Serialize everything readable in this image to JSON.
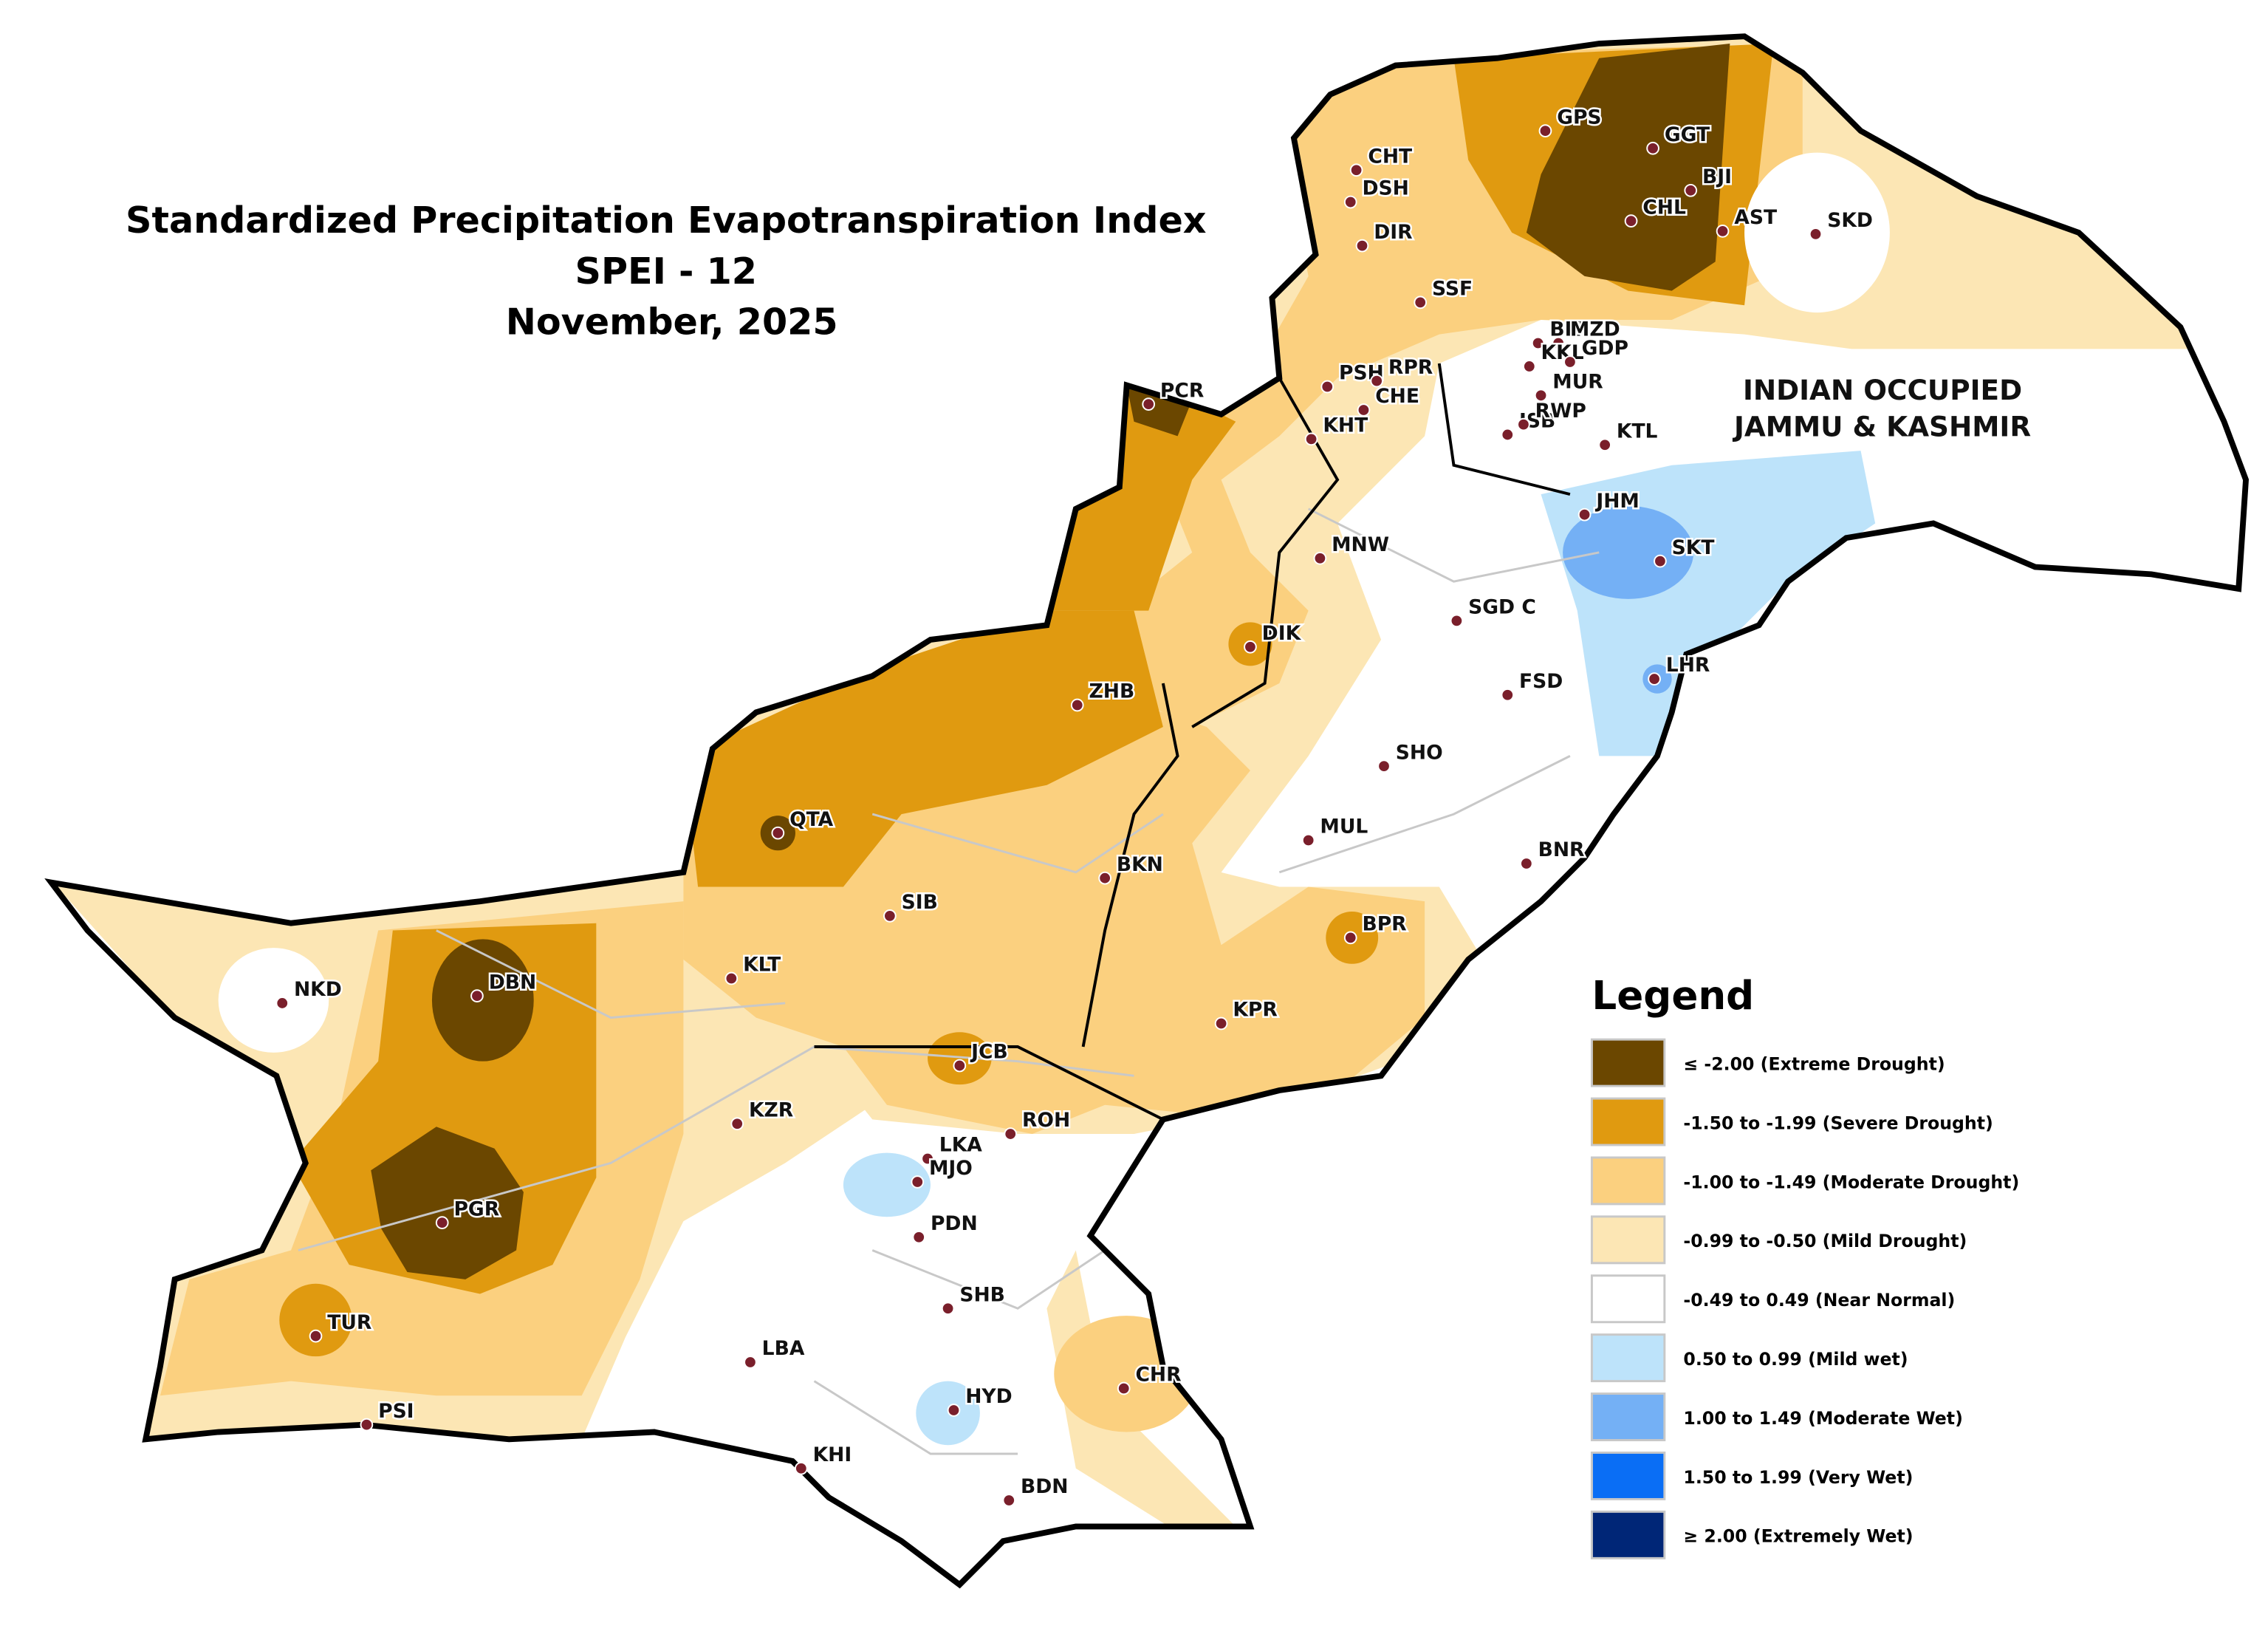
{
  "title": [
    "Standardized Precipitation Evapotranspiration Index",
    "SPEI - 12",
    "November, 2025"
  ],
  "region_label": [
    "INDIAN OCCUPIED",
    "JAMMU & KASHMIR"
  ],
  "stations": [
    "GPS",
    "GGT",
    "BJI",
    "CHT",
    "DSH",
    "CHL",
    "AST",
    "SKD",
    "DIR",
    "SSF",
    "BKT",
    "MZD",
    "KKL",
    "GDP",
    "PSH",
    "RPR",
    "MUR",
    "CHE",
    "PCR",
    "ISB",
    "RWP",
    "KHT",
    "KTL",
    "JHM",
    "SKT",
    "MNW",
    "SGD C",
    "DIK",
    "LHR",
    "FSD",
    "ZHB",
    "SHO",
    "QTA",
    "MUL",
    "BNR",
    "BKN",
    "SIB",
    "BPR",
    "KLT",
    "NKD",
    "DBN",
    "KPR",
    "JCB",
    "KZR",
    "ROH",
    "LKA",
    "MJO",
    "PDN",
    "PGR",
    "SHB",
    "TUR",
    "LBA",
    "CHR",
    "HYD",
    "PSI",
    "KHI",
    "BDN"
  ],
  "legend": {
    "title": "Legend",
    "items": [
      {
        "label": "≤ -2.00  (Extreme Drought)",
        "color": "#6b4700"
      },
      {
        "label": "-1.50 to -1.99  (Severe Drought)",
        "color": "#e09a10"
      },
      {
        "label": "-1.00 to -1.49  (Moderate Drought)",
        "color": "#fbd07f"
      },
      {
        "label": "-0.99 to -0.50  (Mild Drought)",
        "color": "#fce6b4"
      },
      {
        "label": "-0.49 to 0.49  (Near Normal)",
        "color": "#ffffff"
      },
      {
        "label": "0.50 to 0.99  (Mild wet)",
        "color": "#bde3fa"
      },
      {
        "label": "1.00 to 1.49  (Moderate Wet)",
        "color": "#74b0f5"
      },
      {
        "label": "1.50 to 1.99  (Very Wet)",
        "color": "#0a6ef5"
      },
      {
        "label": "≥ 2.00   (Extremely Wet)",
        "color": "#002677"
      }
    ]
  }
}
